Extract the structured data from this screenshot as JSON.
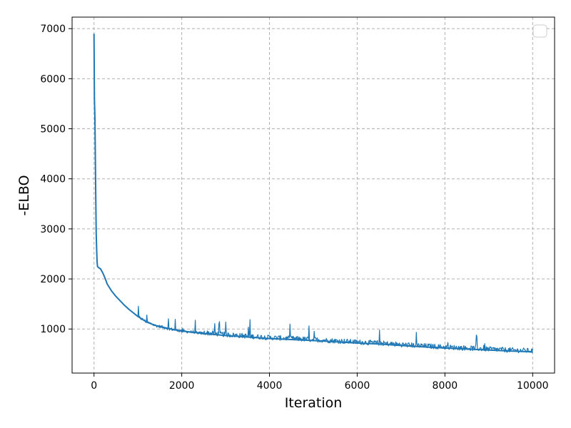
{
  "chart_data": {
    "type": "line",
    "title": "",
    "xlabel": "Iteration",
    "ylabel": "-ELBO",
    "xlim": [
      -500,
      10500
    ],
    "ylim": [
      120,
      7230
    ],
    "x_ticks": [
      0,
      2000,
      4000,
      6000,
      8000,
      10000
    ],
    "x_tick_labels": [
      "0",
      "2000",
      "4000",
      "6000",
      "8000",
      "10000"
    ],
    "y_ticks": [
      1000,
      2000,
      3000,
      4000,
      5000,
      6000,
      7000
    ],
    "y_tick_labels": [
      "1000",
      "2000",
      "3000",
      "4000",
      "5000",
      "6000",
      "7000"
    ],
    "grid": true,
    "legend": {
      "placement": "top-right",
      "entries": []
    },
    "series": [
      {
        "color": "#1f77b4",
        "x": [
          0,
          10,
          20,
          30,
          40,
          50,
          60,
          70,
          80,
          100,
          150,
          200,
          250,
          300,
          400,
          500,
          600,
          700,
          800,
          1000,
          1200,
          1400,
          1600,
          1800,
          2000,
          2500,
          3000,
          3500,
          4000,
          4500,
          5000,
          5500,
          6000,
          6500,
          7000,
          7500,
          8000,
          8500,
          9000,
          9500,
          10000
        ],
        "values": [
          6900,
          5600,
          5200,
          4400,
          3600,
          2900,
          2600,
          2350,
          2250,
          2230,
          2200,
          2120,
          2020,
          1900,
          1760,
          1650,
          1560,
          1470,
          1390,
          1250,
          1140,
          1070,
          1030,
          990,
          960,
          910,
          870,
          840,
          810,
          790,
          770,
          745,
          720,
          700,
          670,
          645,
          620,
          600,
          580,
          560,
          545
        ]
      }
    ]
  }
}
